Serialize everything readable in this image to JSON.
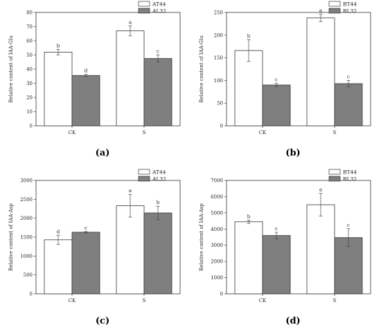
{
  "colors": {
    "white_bar": "#ffffff",
    "grey_bar": "#7f7f7f",
    "stroke": "#333333"
  },
  "chart_data": [
    {
      "type": "bar",
      "panel_label": "(a)",
      "categories": [
        "CK",
        "S"
      ],
      "ylabel": "Relative content of IAA-Glu",
      "ylim": [
        0,
        80
      ],
      "yticks": [
        0,
        10,
        20,
        30,
        40,
        50,
        60,
        70,
        80
      ],
      "series": [
        {
          "name": "AT44",
          "color": "#ffffff",
          "values": [
            52,
            67
          ],
          "errors": [
            2,
            3.5
          ],
          "letters": [
            "b",
            "a"
          ]
        },
        {
          "name": "AL32",
          "color": "#7f7f7f",
          "values": [
            35.5,
            47.5
          ],
          "errors": [
            0.8,
            2.5
          ],
          "letters": [
            "d",
            "c"
          ]
        }
      ]
    },
    {
      "type": "bar",
      "panel_label": "(b)",
      "categories": [
        "CK",
        "S"
      ],
      "ylabel": "Relative content of IAA-Glu",
      "ylim": [
        0,
        250
      ],
      "yticks": [
        0,
        50,
        100,
        150,
        200,
        250
      ],
      "series": [
        {
          "name": "BT44",
          "color": "#ffffff",
          "values": [
            166,
            238
          ],
          "errors": [
            24,
            8
          ],
          "letters": [
            "b",
            "a"
          ]
        },
        {
          "name": "BL32",
          "color": "#7f7f7f",
          "values": [
            90,
            93
          ],
          "errors": [
            4,
            7
          ],
          "letters": [
            "c",
            "c"
          ]
        }
      ]
    },
    {
      "type": "bar",
      "panel_label": "(c)",
      "categories": [
        "CK",
        "S"
      ],
      "ylabel": "Relative content of IAA-Asp",
      "ylim": [
        0,
        3000
      ],
      "yticks": [
        0,
        500,
        1000,
        1500,
        2000,
        2500,
        3000
      ],
      "series": [
        {
          "name": "AT44",
          "color": "#ffffff",
          "values": [
            1430,
            2330
          ],
          "errors": [
            120,
            300
          ],
          "letters": [
            "d",
            "a"
          ]
        },
        {
          "name": "AL32",
          "color": "#7f7f7f",
          "values": [
            1630,
            2140
          ],
          "errors": [
            20,
            180
          ],
          "letters": [
            "c",
            "b"
          ]
        }
      ]
    },
    {
      "type": "bar",
      "panel_label": "(d)",
      "categories": [
        "CK",
        "S"
      ],
      "ylabel": "Relative content of IAA-Asp",
      "ylim": [
        0,
        7000
      ],
      "yticks": [
        0,
        1000,
        2000,
        3000,
        4000,
        5000,
        6000,
        7000
      ],
      "series": [
        {
          "name": "BT44",
          "color": "#ffffff",
          "values": [
            4450,
            5500
          ],
          "errors": [
            100,
            700
          ],
          "letters": [
            "b",
            "a"
          ]
        },
        {
          "name": "BL32",
          "color": "#7f7f7f",
          "values": [
            3600,
            3470
          ],
          "errors": [
            200,
            550
          ],
          "letters": [
            "c",
            "c"
          ]
        }
      ]
    }
  ]
}
